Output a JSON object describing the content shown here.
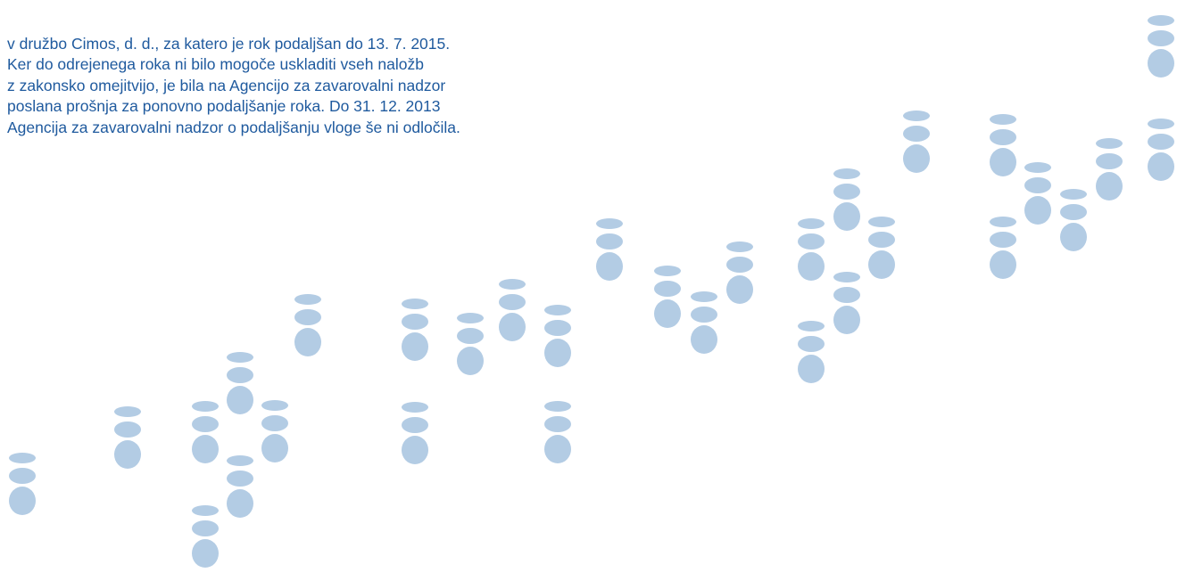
{
  "paragraph": {
    "lines": [
      "v družbo Cimos, d. d., za katero je rok podaljšan do 13. 7. 2015.",
      "Ker do odrejenega roka ni bilo mogoče uskladiti vseh naložb",
      "z zakonsko omejitvijo, je bila na Agencijo za zavarovalni nadzor",
      "poslana prošnja za ponovno podaljšanje roka. Do 31. 12. 2013",
      "Agencija za zavarovalni nadzor o podaljšanju vloge še ni odločila."
    ]
  }
}
